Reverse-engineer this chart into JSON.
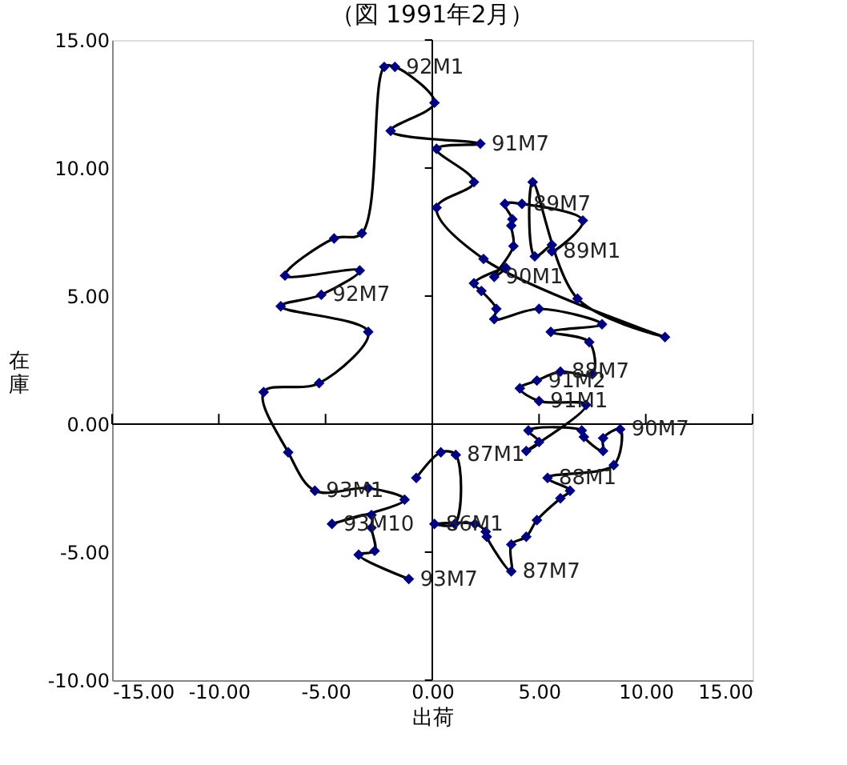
{
  "chart_data": {
    "type": "line",
    "title": "（図 1991年2月）",
    "xlabel": "出荷",
    "ylabel": "在庫",
    "xlim": [
      -15,
      15
    ],
    "ylim": [
      -10,
      15
    ],
    "xticks": [
      {
        "value": -15,
        "label": "-15.00"
      },
      {
        "value": -10,
        "label": "-10.00"
      },
      {
        "value": -5,
        "label": "-5.00"
      },
      {
        "value": 0,
        "label": "0.00"
      },
      {
        "value": 5,
        "label": "5.00"
      },
      {
        "value": 10,
        "label": "10.00"
      },
      {
        "value": 15,
        "label": "15.00"
      }
    ],
    "yticks": [
      {
        "value": -10,
        "label": "-10.00"
      },
      {
        "value": -5,
        "label": "-5.00"
      },
      {
        "value": 0,
        "label": "0.00"
      },
      {
        "value": 5,
        "label": "5.00"
      },
      {
        "value": 10,
        "label": "10.00"
      },
      {
        "value": 15,
        "label": "15.00"
      }
    ],
    "marker": "diamond",
    "line_style": "solid",
    "series": [
      {
        "color": "#000080",
        "x": [
          -0.75,
          0.4,
          1.1,
          1.05,
          0.1,
          2.0,
          2.5,
          2.55,
          3.7,
          3.7,
          4.4,
          4.9,
          6.0,
          6.45,
          5.4,
          8.5,
          8.8,
          8.0,
          8.0,
          7.1,
          7.0,
          4.5,
          5.0,
          4.4,
          7.2,
          5.0,
          4.1,
          4.9,
          6.0,
          7.5,
          7.35,
          5.55,
          7.95,
          5.0,
          2.9,
          3.0,
          2.3,
          1.95,
          3.45,
          2.9,
          3.8,
          3.7,
          3.75,
          3.4,
          4.2,
          7.05,
          5.6,
          5.6,
          4.8,
          4.7,
          6.8,
          10.9,
          2.4,
          0.2,
          1.95,
          0.2,
          2.25,
          -1.95,
          0.1,
          -1.75,
          -2.25,
          -3.3,
          -4.6,
          -6.9,
          -3.4,
          -5.2,
          -7.1,
          -3.0,
          -5.3,
          -7.9,
          -6.75,
          -5.5,
          -3.0,
          -1.3,
          -4.7,
          -2.85,
          -2.85,
          -2.7,
          -3.45,
          -1.1
        ],
        "values": [
          -2.1,
          -1.1,
          -1.2,
          -3.9,
          -3.9,
          -3.9,
          -4.2,
          -4.4,
          -5.75,
          -4.7,
          -4.4,
          -3.75,
          -2.9,
          -2.6,
          -2.1,
          -1.6,
          -0.2,
          -0.55,
          -1.05,
          -0.5,
          -0.25,
          -0.25,
          -0.7,
          -1.05,
          0.75,
          0.9,
          1.4,
          1.7,
          2.05,
          1.95,
          3.2,
          3.6,
          3.9,
          4.5,
          4.1,
          4.5,
          5.2,
          5.5,
          6.1,
          5.75,
          6.95,
          7.75,
          8.0,
          8.6,
          8.6,
          7.95,
          6.75,
          7.0,
          6.55,
          9.45,
          4.9,
          3.4,
          6.45,
          8.45,
          9.45,
          10.75,
          10.95,
          11.45,
          12.55,
          13.95,
          13.95,
          7.45,
          7.25,
          5.8,
          6.0,
          5.05,
          4.6,
          3.6,
          1.6,
          1.25,
          -1.1,
          -2.6,
          -2.5,
          -2.95,
          -3.9,
          -3.55,
          -4.05,
          -4.95,
          -5.1,
          -6.05
        ]
      }
    ],
    "annotations": [
      {
        "text": "92M1",
        "x": -1.75,
        "y": 13.95
      },
      {
        "text": "91M7",
        "x": 2.25,
        "y": 10.95
      },
      {
        "text": "89M7",
        "x": 4.2,
        "y": 8.6
      },
      {
        "text": "89M1",
        "x": 5.6,
        "y": 6.75
      },
      {
        "text": "90M1",
        "x": 2.9,
        "y": 5.75
      },
      {
        "text": "92M7",
        "x": -5.2,
        "y": 5.05
      },
      {
        "text": "88M7",
        "x": 6.0,
        "y": 2.05
      },
      {
        "text": "91M2",
        "x": 4.9,
        "y": 1.7
      },
      {
        "text": "91M1",
        "x": 5.0,
        "y": 0.9
      },
      {
        "text": "90M7",
        "x": 8.8,
        "y": -0.2
      },
      {
        "text": "93M1",
        "x": -5.5,
        "y": -2.6
      },
      {
        "text": "86M1",
        "x": 0.1,
        "y": -3.9
      },
      {
        "text": "87M1",
        "x": 1.1,
        "y": -1.2
      },
      {
        "text": "88M1",
        "x": 5.4,
        "y": -2.1
      },
      {
        "text": "93M10",
        "x": -4.7,
        "y": -3.9
      },
      {
        "text": "93M7",
        "x": -1.1,
        "y": -6.05
      },
      {
        "text": "87M7",
        "x": 3.7,
        "y": -5.75
      }
    ]
  }
}
